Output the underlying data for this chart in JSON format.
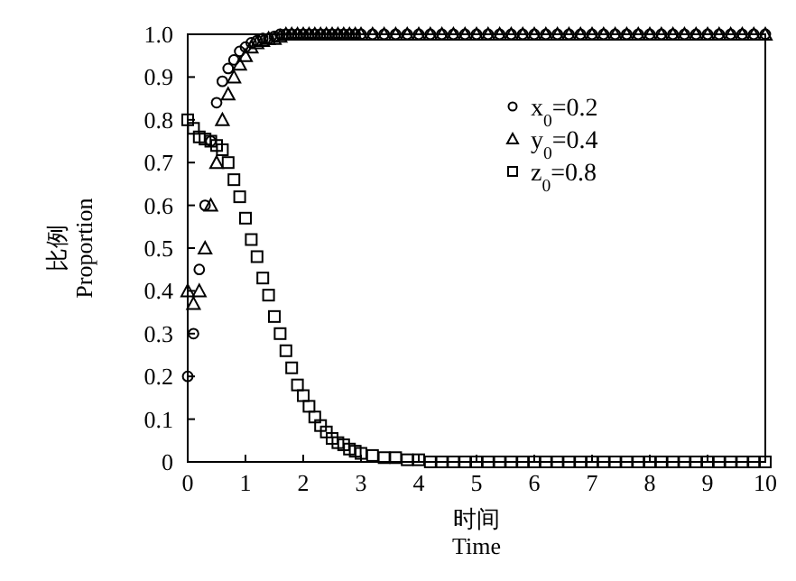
{
  "chart_data": {
    "type": "scatter",
    "xlabel": "时间\nTime",
    "ylabel": "比例\nProportion",
    "x": [
      0,
      0.1,
      0.2,
      0.3,
      0.4,
      0.5,
      0.6,
      0.7,
      0.8,
      0.9,
      1,
      1.1,
      1.2,
      1.3,
      1.4,
      1.5,
      1.6,
      1.7,
      1.8,
      1.9,
      2,
      2.1,
      2.2,
      2.3,
      2.4,
      2.5,
      2.6,
      2.7,
      2.8,
      2.9,
      3,
      3.2,
      3.4,
      3.6,
      3.8,
      4,
      4.2,
      4.4,
      4.6,
      4.8,
      5,
      5.2,
      5.4,
      5.6,
      5.8,
      6,
      6.2,
      6.4,
      6.6,
      6.8,
      7,
      7.2,
      7.4,
      7.6,
      7.8,
      8,
      8.2,
      8.4,
      8.6,
      8.8,
      9,
      9.2,
      9.4,
      9.6,
      9.8,
      10
    ],
    "series": [
      {
        "name": "x$_{0}$=0.2",
        "color": "#000000",
        "marker": "circle",
        "values": [
          0.2,
          0.3,
          0.45,
          0.6,
          0.75,
          0.84,
          0.89,
          0.92,
          0.94,
          0.96,
          0.97,
          0.98,
          0.985,
          0.99,
          0.99,
          0.995,
          1,
          1,
          1,
          1,
          1,
          1,
          1,
          1,
          1,
          1,
          1,
          1,
          1,
          1,
          1,
          1,
          1,
          1,
          1,
          1,
          1,
          1,
          1,
          1,
          1,
          1,
          1,
          1,
          1,
          1,
          1,
          1,
          1,
          1,
          1,
          1,
          1,
          1,
          1,
          1,
          1,
          1,
          1,
          1,
          1,
          1,
          1,
          1,
          1,
          1
        ]
      },
      {
        "name": "y$_{0}$=0.4",
        "color": "#000000",
        "marker": "triangle",
        "values": [
          0.4,
          0.37,
          0.4,
          0.5,
          0.6,
          0.7,
          0.8,
          0.86,
          0.9,
          0.93,
          0.95,
          0.97,
          0.98,
          0.985,
          0.99,
          0.99,
          0.995,
          1,
          1,
          1,
          1,
          1,
          1,
          1,
          1,
          1,
          1,
          1,
          1,
          1,
          1,
          1,
          1,
          1,
          1,
          1,
          1,
          1,
          1,
          1,
          1,
          1,
          1,
          1,
          1,
          1,
          1,
          1,
          1,
          1,
          1,
          1,
          1,
          1,
          1,
          1,
          1,
          1,
          1,
          1,
          1,
          1,
          1,
          1,
          1,
          1
        ]
      },
      {
        "name": "z$_{0}$=0.8",
        "color": "#000000",
        "marker": "square",
        "values": [
          0.8,
          0.78,
          0.76,
          0.755,
          0.75,
          0.74,
          0.73,
          0.7,
          0.66,
          0.62,
          0.57,
          0.52,
          0.48,
          0.43,
          0.39,
          0.34,
          0.3,
          0.26,
          0.22,
          0.18,
          0.155,
          0.13,
          0.105,
          0.085,
          0.07,
          0.055,
          0.045,
          0.04,
          0.03,
          0.025,
          0.02,
          0.015,
          0.01,
          0.01,
          0.005,
          0.005,
          0,
          0,
          0,
          0,
          0,
          0,
          0,
          0,
          0,
          0,
          0,
          0,
          0,
          0,
          0,
          0,
          0,
          0,
          0,
          0,
          0,
          0,
          0,
          0,
          0,
          0,
          0,
          0,
          0,
          0
        ]
      }
    ],
    "xlim": [
      0,
      10
    ],
    "xticks": [
      0,
      1,
      2,
      3,
      4,
      5,
      6,
      7,
      8,
      9,
      10
    ],
    "ylim": [
      0,
      1
    ],
    "yticks": [
      0,
      0.1,
      0.2,
      0.3,
      0.4,
      0.5,
      0.6,
      0.7,
      0.8,
      0.9,
      {
        "value": 1,
        "label": "1.0"
      }
    ],
    "legend": "top right",
    "grid": false
  }
}
